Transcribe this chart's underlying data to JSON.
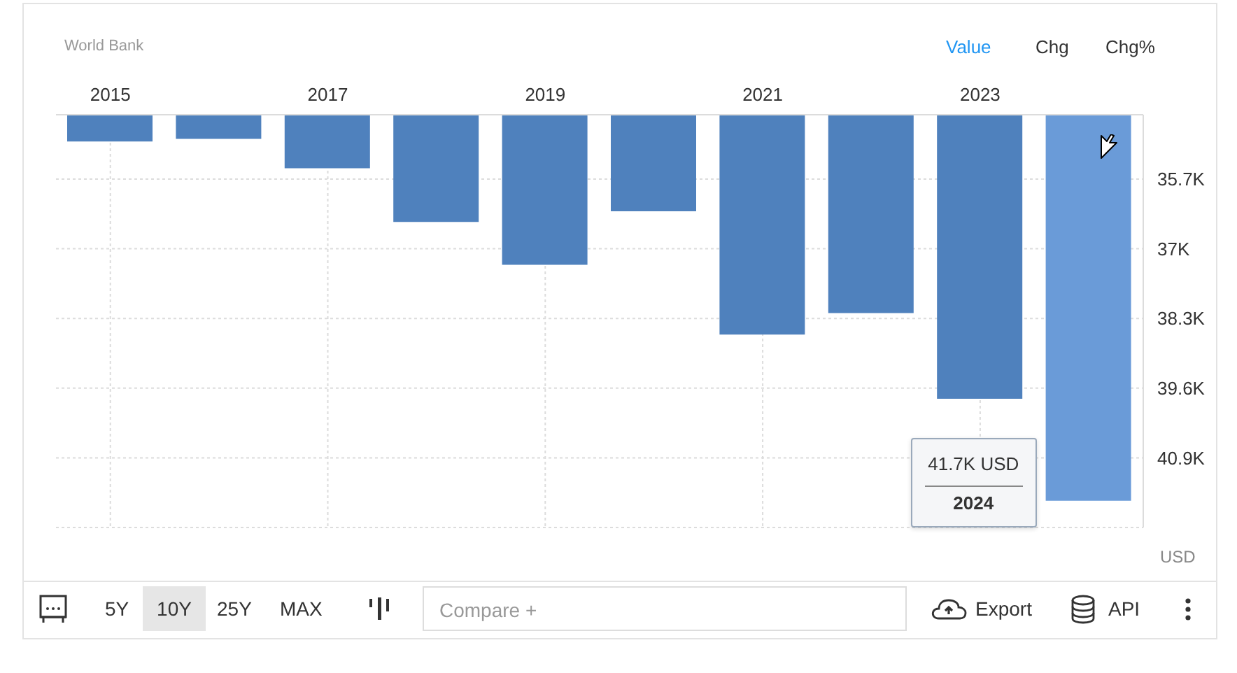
{
  "chart_data": {
    "type": "bar",
    "categories": [
      "2015",
      null,
      "2017",
      null,
      "2019",
      null,
      "2021",
      null,
      "2023",
      null
    ],
    "values": [
      35.0,
      34.95,
      35.5,
      36.5,
      37.3,
      36.3,
      38.6,
      38.2,
      39.8,
      41.7
    ],
    "colors": [
      "#4f81bd",
      "#4f81bd",
      "#4f81bd",
      "#4f81bd",
      "#4f81bd",
      "#4f81bd",
      "#4f81bd",
      "#4f81bd",
      "#4f81bd",
      "#6a9bd8"
    ],
    "ylabel": "USD",
    "ylim": [
      42.2,
      34.5
    ],
    "yticks": [
      {
        "value": 35.7,
        "label": "35.7K"
      },
      {
        "value": 37,
        "label": "37K"
      },
      {
        "value": 38.3,
        "label": "38.3K"
      },
      {
        "value": 39.6,
        "label": "39.6K"
      },
      {
        "value": 40.9,
        "label": "40.9K"
      },
      {
        "value": 42.2,
        "label": null
      }
    ],
    "grid": true,
    "annotations": [
      "World Bank",
      "Value",
      "Chg",
      "Chg%",
      "41.7K USD",
      "2024",
      "5Y",
      "10Y",
      "25Y",
      "MAX",
      "Compare +",
      "Export",
      "API"
    ]
  }
}
